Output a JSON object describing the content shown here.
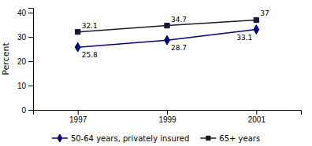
{
  "chart_data": {
    "type": "line",
    "x": [
      1997,
      1999,
      2001
    ],
    "xlim": [
      1996,
      2002
    ],
    "xticks": [
      1997,
      1999,
      2001
    ],
    "ylabel": "Percent",
    "ylim": [
      0,
      42
    ],
    "yticks": [
      0,
      10,
      20,
      30,
      40
    ],
    "grid": false,
    "legend": "bottom",
    "data_labels": true,
    "series": [
      {
        "name": "50-64 years, privately insured",
        "color": "#00008B",
        "marker": "diamond",
        "values": [
          25.8,
          28.7,
          33.1
        ]
      },
      {
        "name": "65+ years",
        "color": "#1a1a2e",
        "marker": "square",
        "values": [
          32.1,
          34.7,
          37
        ]
      }
    ]
  }
}
